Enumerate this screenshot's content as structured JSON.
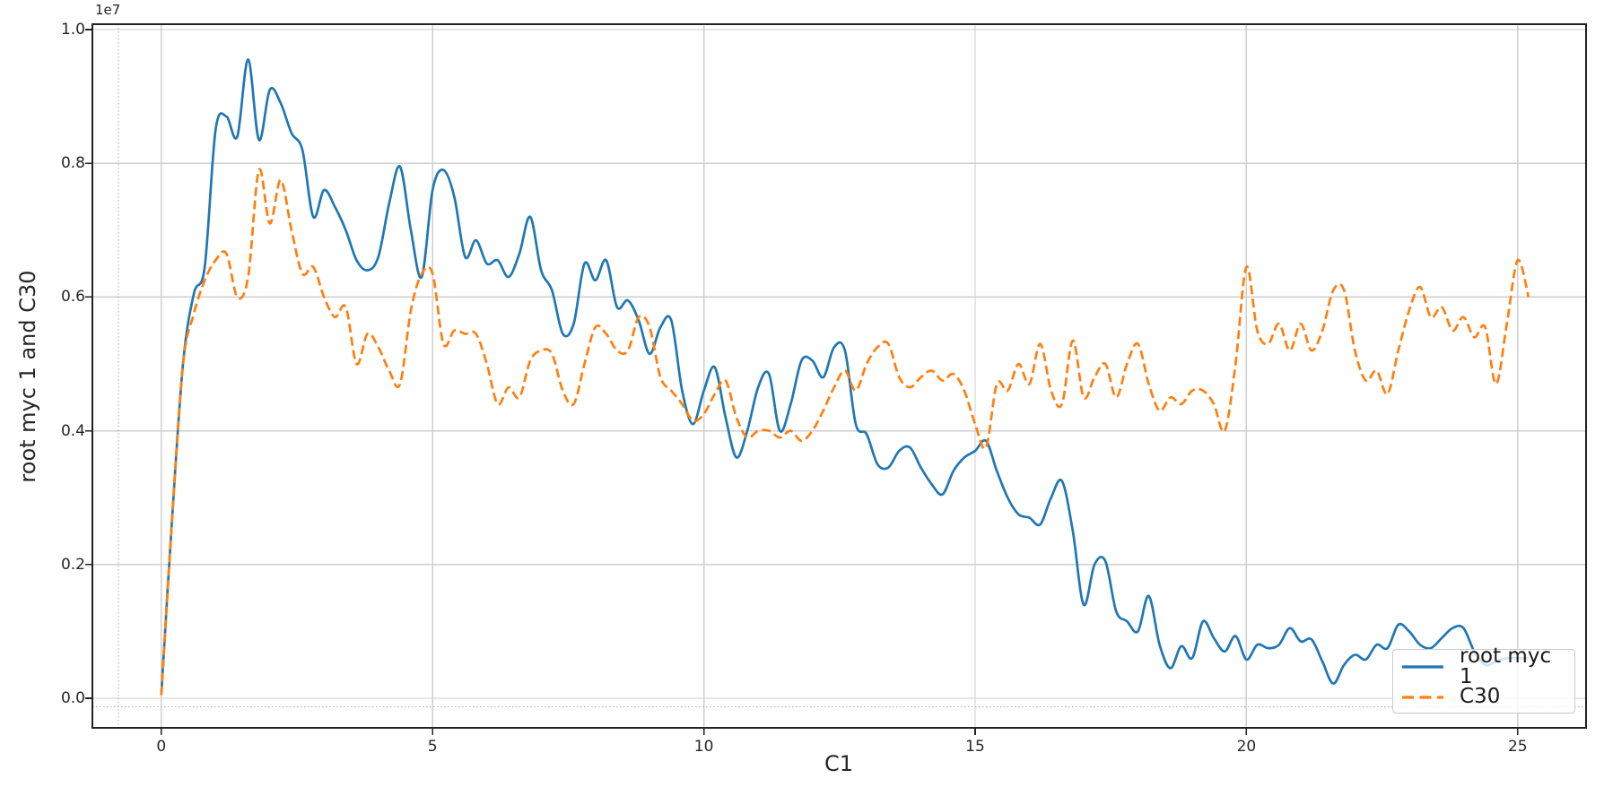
{
  "figure": {
    "offset_text": "1e7",
    "xlabel": "C1",
    "ylabel": "root myc 1 and C30",
    "background": "#ffffff",
    "grid_color": "#cfcfcf",
    "dotted_line_color": "#aaaaaa",
    "spine_color": "#222222",
    "text_color": "#262626"
  },
  "legend": {
    "position": "lower right",
    "items": [
      {
        "label": "root myc 1",
        "line_style": "solid",
        "color": "#1f77b4"
      },
      {
        "label": "C30",
        "line_style": "dashed",
        "color": "#ff7f0e"
      }
    ]
  },
  "chart_data": {
    "type": "line",
    "title": "",
    "xlabel": "C1",
    "ylabel": "root myc 1 and C30",
    "y_offset_factor_label": "1e7",
    "y_scale": 10000000,
    "xlim": [
      -1.27,
      26.26
    ],
    "ylim_scaled": [
      -0.0442,
      1.008
    ],
    "grid": true,
    "x_ticks": [
      0,
      5,
      10,
      15,
      20,
      25
    ],
    "x_tick_labels": [
      "0",
      "5",
      "10",
      "15",
      "20",
      "25"
    ],
    "y_ticks_scaled": [
      0.0,
      0.2,
      0.4,
      0.6,
      0.8,
      1.0
    ],
    "y_tick_labels": [
      "0.0",
      "0.2",
      "0.4",
      "0.6",
      "0.8",
      "1.0"
    ],
    "extra_dotted_lines": {
      "x": -0.79,
      "y_scaled": -0.013
    },
    "x_start": 0,
    "x_step": 0.2,
    "series": [
      {
        "name": "root myc 1",
        "color": "#1f77b4",
        "style": "solid",
        "values_scaled": [
          0.005,
          0.27,
          0.5,
          0.605,
          0.645,
          0.85,
          0.87,
          0.84,
          0.955,
          0.835,
          0.91,
          0.89,
          0.845,
          0.82,
          0.72,
          0.76,
          0.735,
          0.7,
          0.655,
          0.64,
          0.66,
          0.74,
          0.795,
          0.7,
          0.63,
          0.76,
          0.79,
          0.75,
          0.66,
          0.685,
          0.65,
          0.655,
          0.63,
          0.665,
          0.72,
          0.64,
          0.61,
          0.545,
          0.56,
          0.65,
          0.625,
          0.655,
          0.585,
          0.595,
          0.565,
          0.515,
          0.555,
          0.565,
          0.46,
          0.41,
          0.46,
          0.495,
          0.42,
          0.36,
          0.4,
          0.465,
          0.485,
          0.4,
          0.44,
          0.505,
          0.505,
          0.48,
          0.525,
          0.52,
          0.41,
          0.395,
          0.35,
          0.345,
          0.37,
          0.375,
          0.345,
          0.32,
          0.305,
          0.34,
          0.36,
          0.37,
          0.385,
          0.34,
          0.3,
          0.275,
          0.27,
          0.26,
          0.3,
          0.325,
          0.25,
          0.14,
          0.2,
          0.205,
          0.13,
          0.115,
          0.1,
          0.153,
          0.08,
          0.045,
          0.078,
          0.06,
          0.115,
          0.09,
          0.07,
          0.093,
          0.058,
          0.08,
          0.075,
          0.08,
          0.105,
          0.085,
          0.088,
          0.055,
          0.022,
          0.05,
          0.065,
          0.058,
          0.08,
          0.075,
          0.11,
          0.1,
          0.08,
          0.075,
          0.09,
          0.105,
          0.105,
          0.07,
          0.05,
          0.055,
          0.06,
          0.06,
          0.06
        ]
      },
      {
        "name": "C30",
        "color": "#ff7f0e",
        "style": "dashed",
        "values_scaled": [
          0.005,
          0.27,
          0.5,
          0.575,
          0.625,
          0.655,
          0.665,
          0.6,
          0.63,
          0.79,
          0.71,
          0.775,
          0.7,
          0.635,
          0.645,
          0.6,
          0.57,
          0.585,
          0.5,
          0.545,
          0.525,
          0.49,
          0.47,
          0.58,
          0.635,
          0.635,
          0.53,
          0.55,
          0.545,
          0.545,
          0.5,
          0.44,
          0.465,
          0.45,
          0.505,
          0.52,
          0.515,
          0.46,
          0.44,
          0.5,
          0.555,
          0.545,
          0.52,
          0.52,
          0.57,
          0.555,
          0.48,
          0.46,
          0.44,
          0.415,
          0.425,
          0.455,
          0.475,
          0.42,
          0.39,
          0.4,
          0.4,
          0.39,
          0.4,
          0.385,
          0.4,
          0.43,
          0.465,
          0.49,
          0.46,
          0.5,
          0.525,
          0.53,
          0.48,
          0.465,
          0.48,
          0.49,
          0.475,
          0.485,
          0.46,
          0.41,
          0.375,
          0.47,
          0.46,
          0.5,
          0.47,
          0.53,
          0.46,
          0.44,
          0.535,
          0.45,
          0.48,
          0.5,
          0.45,
          0.5,
          0.53,
          0.47,
          0.43,
          0.45,
          0.44,
          0.46,
          0.46,
          0.44,
          0.4,
          0.5,
          0.645,
          0.55,
          0.53,
          0.56,
          0.52,
          0.56,
          0.52,
          0.55,
          0.61,
          0.61,
          0.52,
          0.475,
          0.49,
          0.455,
          0.52,
          0.58,
          0.615,
          0.57,
          0.585,
          0.55,
          0.57,
          0.54,
          0.555,
          0.47,
          0.56,
          0.655,
          0.6
        ]
      }
    ]
  }
}
